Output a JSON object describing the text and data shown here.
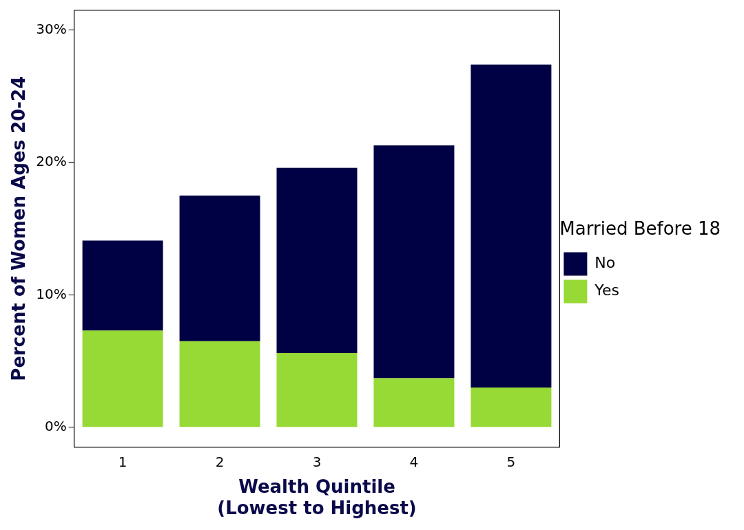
{
  "chart_data": {
    "type": "bar",
    "xlabel": "Wealth Quintile\n(Lowest to Highest)",
    "ylabel": "Percent of Women Ages 20-24",
    "legend_title": "Married Before 18",
    "categories": [
      "1",
      "2",
      "3",
      "4",
      "5"
    ],
    "stacked": true,
    "series": [
      {
        "name": "Yes",
        "color": "#97d935",
        "values": [
          7.3,
          6.5,
          5.6,
          3.7,
          3.0
        ]
      },
      {
        "name": "No",
        "color": "#000044",
        "values": [
          6.8,
          11.0,
          14.0,
          17.6,
          24.4
        ]
      }
    ],
    "ylim": [
      -1.5,
      31.5
    ],
    "yticks": [
      {
        "value": 0,
        "label": "0%"
      },
      {
        "value": 10,
        "label": "10%"
      },
      {
        "value": 20,
        "label": "20%"
      },
      {
        "value": 30,
        "label": "30%"
      }
    ],
    "grid": false,
    "legend": "right"
  }
}
